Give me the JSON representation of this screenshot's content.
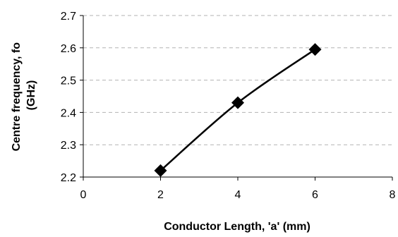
{
  "chart_data": {
    "type": "line",
    "xlabel": "Conductor Length, 'a' (mm)",
    "ylabel_line1": "Centre frequency, fo",
    "ylabel_line2": "(GHz)",
    "xlim": [
      0,
      8
    ],
    "ylim": [
      2.2,
      2.7
    ],
    "x_ticks": [
      "0",
      "2",
      "4",
      "6",
      "8"
    ],
    "y_ticks": [
      "2.2",
      "2.3",
      "2.4",
      "2.5",
      "2.6",
      "2.7"
    ],
    "grid": "horizontal-dashed",
    "marker": "diamond",
    "smooth": true,
    "series": [
      {
        "x": [
          2,
          4,
          6
        ],
        "y": [
          2.22,
          2.43,
          2.595
        ]
      }
    ],
    "colors": {
      "line": "#000000",
      "grid": "#b3b3b3",
      "axis": "#000000"
    }
  }
}
